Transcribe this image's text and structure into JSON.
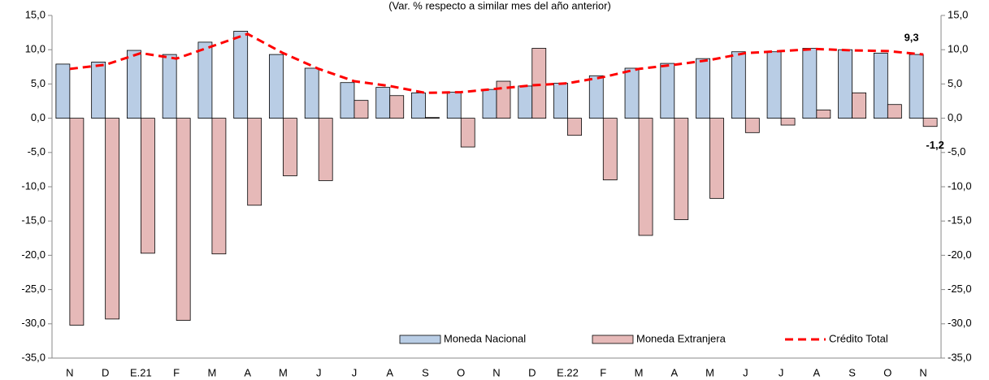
{
  "chart_data": {
    "type": "bar",
    "subtitle": "(Var. % respecto a similar mes del año anterior)",
    "categories": [
      "N",
      "D",
      "E.21",
      "F",
      "M",
      "A",
      "M",
      "J",
      "J",
      "A",
      "S",
      "O",
      "N",
      "D",
      "E.22",
      "F",
      "M",
      "A",
      "M",
      "J",
      "J",
      "A",
      "S",
      "O",
      "N"
    ],
    "series": [
      {
        "name": "Moneda Nacional",
        "type": "bar",
        "color": "#b9cde5",
        "values": [
          7.9,
          8.2,
          9.9,
          9.3,
          11.1,
          12.7,
          9.3,
          7.3,
          5.2,
          4.5,
          3.7,
          3.8,
          4.2,
          4.7,
          5.1,
          6.2,
          7.3,
          8.0,
          8.7,
          9.7,
          9.7,
          10.2,
          10.0,
          9.5,
          9.3
        ],
        "value_labels": [
          null,
          null,
          null,
          null,
          null,
          null,
          null,
          null,
          null,
          null,
          null,
          null,
          null,
          null,
          null,
          null,
          null,
          null,
          null,
          null,
          null,
          null,
          null,
          null,
          "9,3"
        ]
      },
      {
        "name": "Moneda Extranjera",
        "type": "bar",
        "color": "#e6b9b8",
        "values": [
          -30.2,
          -29.3,
          -19.7,
          -29.5,
          -19.8,
          -12.7,
          -8.4,
          -9.1,
          2.6,
          3.3,
          0.1,
          -4.2,
          5.4,
          10.2,
          -2.5,
          -9.0,
          -17.1,
          -14.8,
          -11.7,
          -2.1,
          -1.0,
          1.2,
          3.7,
          2.0,
          -1.2
        ],
        "value_labels": [
          null,
          null,
          null,
          null,
          null,
          null,
          null,
          null,
          null,
          null,
          null,
          null,
          null,
          null,
          null,
          null,
          null,
          null,
          null,
          null,
          null,
          null,
          null,
          null,
          "-1,2"
        ]
      },
      {
        "name": "Crédito Total",
        "type": "line",
        "color": "#ff0000",
        "line_style": "dashed",
        "values": [
          7.2,
          7.8,
          9.5,
          8.7,
          10.5,
          12.3,
          9.5,
          7.2,
          5.4,
          4.7,
          3.7,
          3.8,
          4.3,
          4.8,
          5.1,
          6.0,
          7.2,
          7.8,
          8.5,
          9.5,
          9.8,
          10.1,
          9.9,
          9.8,
          9.3
        ]
      }
    ],
    "ylim": [
      -35,
      15
    ],
    "yticks": [
      {
        "value": -35,
        "label": "-35,0"
      },
      {
        "value": -30,
        "label": "-30,0"
      },
      {
        "value": -25,
        "label": "-25,0"
      },
      {
        "value": -20,
        "label": "-20,0"
      },
      {
        "value": -15,
        "label": "-15,0"
      },
      {
        "value": -10,
        "label": "-10,0"
      },
      {
        "value": -5,
        "label": "-5,0"
      },
      {
        "value": 0,
        "label": "0,0"
      },
      {
        "value": 5,
        "label": "5,0"
      },
      {
        "value": 10,
        "label": "10,0"
      },
      {
        "value": 15,
        "label": "15,0"
      }
    ],
    "y2lim": [
      -35,
      15
    ],
    "y2ticks": [
      {
        "value": -35,
        "label": "-35,0"
      },
      {
        "value": -30,
        "label": "-30,0"
      },
      {
        "value": -25,
        "label": "-25,0"
      },
      {
        "value": -20,
        "label": "-20,0"
      },
      {
        "value": -15,
        "label": "-15,0"
      },
      {
        "value": -10,
        "label": "-10,0"
      },
      {
        "value": -5,
        "label": "-5,0"
      },
      {
        "value": 0,
        "label": "0,0"
      },
      {
        "value": 5,
        "label": "5,0"
      },
      {
        "value": 10,
        "label": "10,0"
      },
      {
        "value": 15,
        "label": "15,0"
      }
    ],
    "grid": false,
    "legend": "lower right"
  }
}
